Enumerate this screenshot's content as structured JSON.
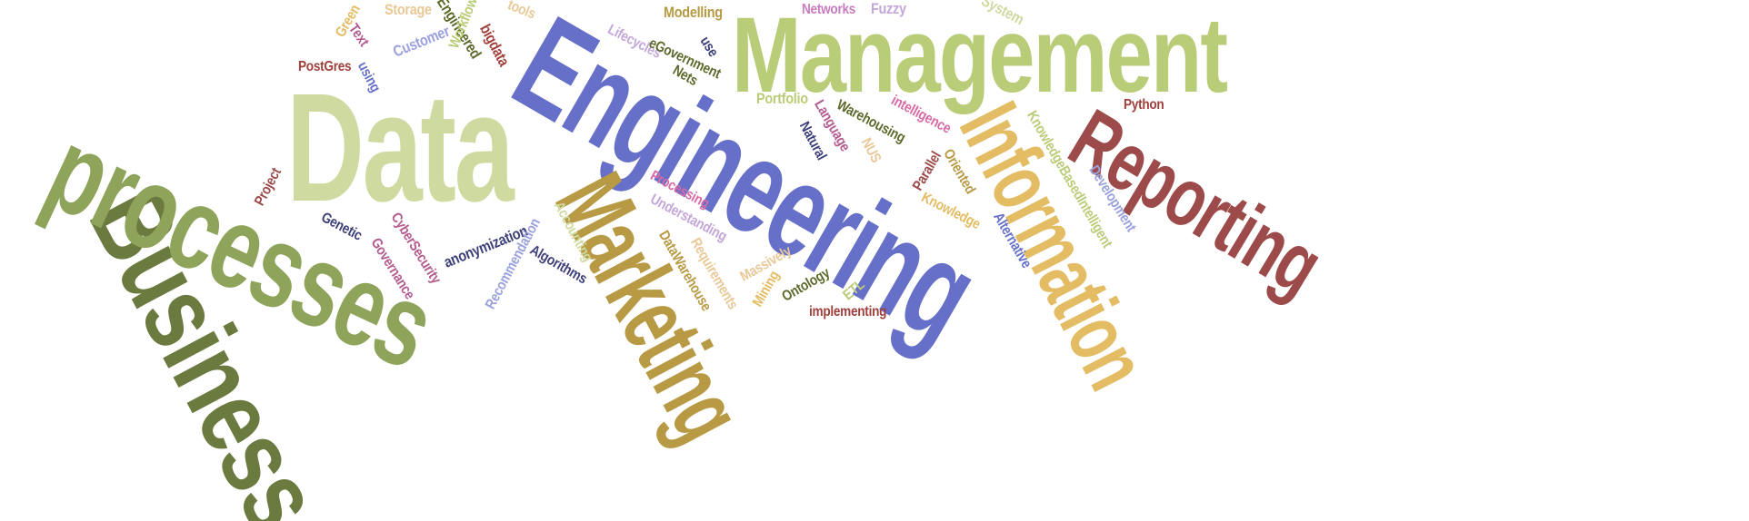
{
  "colors": {
    "background": "#ffffff",
    "olive_dark": "#6b7a3e",
    "olive": "#8ea45a",
    "sage": "#b9cc78",
    "pale_green": "#cfdaa0",
    "indigo": "#6670c8",
    "gold": "#b89a44",
    "amber": "#e3bc64",
    "brick": "#9c4a4a",
    "orchid": "#c97cc0",
    "navy": "#3d3f78",
    "periwinkle": "#9aa1dc",
    "tan": "#e8c896",
    "rust": "#a0403c",
    "mauve": "#b25b8f",
    "pink": "#d86aa6",
    "forest": "#5c6a2c",
    "lilac": "#c4a7d8"
  },
  "words": [
    {
      "id": "word-business",
      "text": "Business",
      "color": "olive_dark"
    },
    {
      "id": "word-data",
      "text": "Data",
      "color": "pale_green"
    },
    {
      "id": "word-processes",
      "text": "processes",
      "color": "olive"
    },
    {
      "id": "word-engineering",
      "text": "Engineering",
      "color": "indigo"
    },
    {
      "id": "word-management",
      "text": "Management",
      "color": "sage"
    },
    {
      "id": "word-marketing",
      "text": "Marketing",
      "color": "gold"
    },
    {
      "id": "word-information",
      "text": "Information",
      "color": "amber"
    },
    {
      "id": "word-reporting",
      "text": "Reporting",
      "color": "brick"
    },
    {
      "id": "word-storage",
      "text": "Storage",
      "color": "tan"
    },
    {
      "id": "word-tools",
      "text": "tools",
      "color": "tan"
    },
    {
      "id": "word-modelling",
      "text": "Modelling",
      "color": "gold"
    },
    {
      "id": "word-networks",
      "text": "Networks",
      "color": "orchid"
    },
    {
      "id": "word-fuzzy",
      "text": "Fuzzy",
      "color": "lilac"
    },
    {
      "id": "word-system",
      "text": "System",
      "color": "pale_green"
    },
    {
      "id": "word-green",
      "text": "Green",
      "color": "amber"
    },
    {
      "id": "word-text",
      "text": "Text",
      "color": "mauve"
    },
    {
      "id": "word-customer",
      "text": "Customer",
      "color": "periwinkle"
    },
    {
      "id": "word-engineered",
      "text": "Engineered",
      "color": "forest"
    },
    {
      "id": "word-bigdata",
      "text": "bigdata",
      "color": "rust"
    },
    {
      "id": "word-lifecycles",
      "text": "Lifecycles",
      "color": "lilac"
    },
    {
      "id": "word-egovernment",
      "text": "eGovernment",
      "color": "forest"
    },
    {
      "id": "word-use",
      "text": "use",
      "color": "navy"
    },
    {
      "id": "word-nets",
      "text": "Nets",
      "color": "forest"
    },
    {
      "id": "word-postgres",
      "text": "PostGres",
      "color": "rust"
    },
    {
      "id": "word-using",
      "text": "using",
      "color": "indigo"
    },
    {
      "id": "word-workflow",
      "text": "Workflow",
      "color": "sage"
    },
    {
      "id": "word-portfolio",
      "text": "Portfolio",
      "color": "sage"
    },
    {
      "id": "word-python",
      "text": "Python",
      "color": "rust"
    },
    {
      "id": "word-language",
      "text": "Language",
      "color": "mauve"
    },
    {
      "id": "word-warehousing",
      "text": "Warehousing",
      "color": "forest"
    },
    {
      "id": "word-intelligence",
      "text": "intelligence",
      "color": "pink"
    },
    {
      "id": "word-natural",
      "text": "Natural",
      "color": "navy"
    },
    {
      "id": "word-nus",
      "text": "NUS",
      "color": "tan"
    },
    {
      "id": "word-parallel",
      "text": "Parallel",
      "color": "brick"
    },
    {
      "id": "word-oriented",
      "text": "Oriented",
      "color": "gold"
    },
    {
      "id": "word-knowledgebased",
      "text": "KnowledgeBasedIntelligent",
      "color": "sage"
    },
    {
      "id": "word-development",
      "text": "Development",
      "color": "periwinkle"
    },
    {
      "id": "word-knowledge",
      "text": "Knowledge",
      "color": "amber"
    },
    {
      "id": "word-alternative",
      "text": "Alternative",
      "color": "indigo"
    },
    {
      "id": "word-project",
      "text": "Project",
      "color": "brick"
    },
    {
      "id": "word-genetic",
      "text": "Genetic",
      "color": "navy"
    },
    {
      "id": "word-cybersecurity",
      "text": "CyberSecurity",
      "color": "mauve"
    },
    {
      "id": "word-governance",
      "text": "Governance",
      "color": "mauve"
    },
    {
      "id": "word-anonymization",
      "text": "anonymization",
      "color": "navy"
    },
    {
      "id": "word-recommendation",
      "text": "Recommendation",
      "color": "periwinkle"
    },
    {
      "id": "word-accounting",
      "text": "Accounting",
      "color": "pale_green"
    },
    {
      "id": "word-algorithms",
      "text": "Algorithms",
      "color": "navy"
    },
    {
      "id": "word-processing",
      "text": "Processing",
      "color": "pink"
    },
    {
      "id": "word-understanding",
      "text": "Understanding",
      "color": "lilac"
    },
    {
      "id": "word-datawarehouse",
      "text": "DataWarehouse",
      "color": "gold"
    },
    {
      "id": "word-requirements",
      "text": "Requirements",
      "color": "tan"
    },
    {
      "id": "word-massively",
      "text": "Massively",
      "color": "tan"
    },
    {
      "id": "word-mining",
      "text": "Mining",
      "color": "amber"
    },
    {
      "id": "word-ontology",
      "text": "Ontology",
      "color": "forest"
    },
    {
      "id": "word-etl",
      "text": "ETL",
      "color": "sage"
    },
    {
      "id": "word-implementing",
      "text": "implementing",
      "color": "rust"
    }
  ]
}
